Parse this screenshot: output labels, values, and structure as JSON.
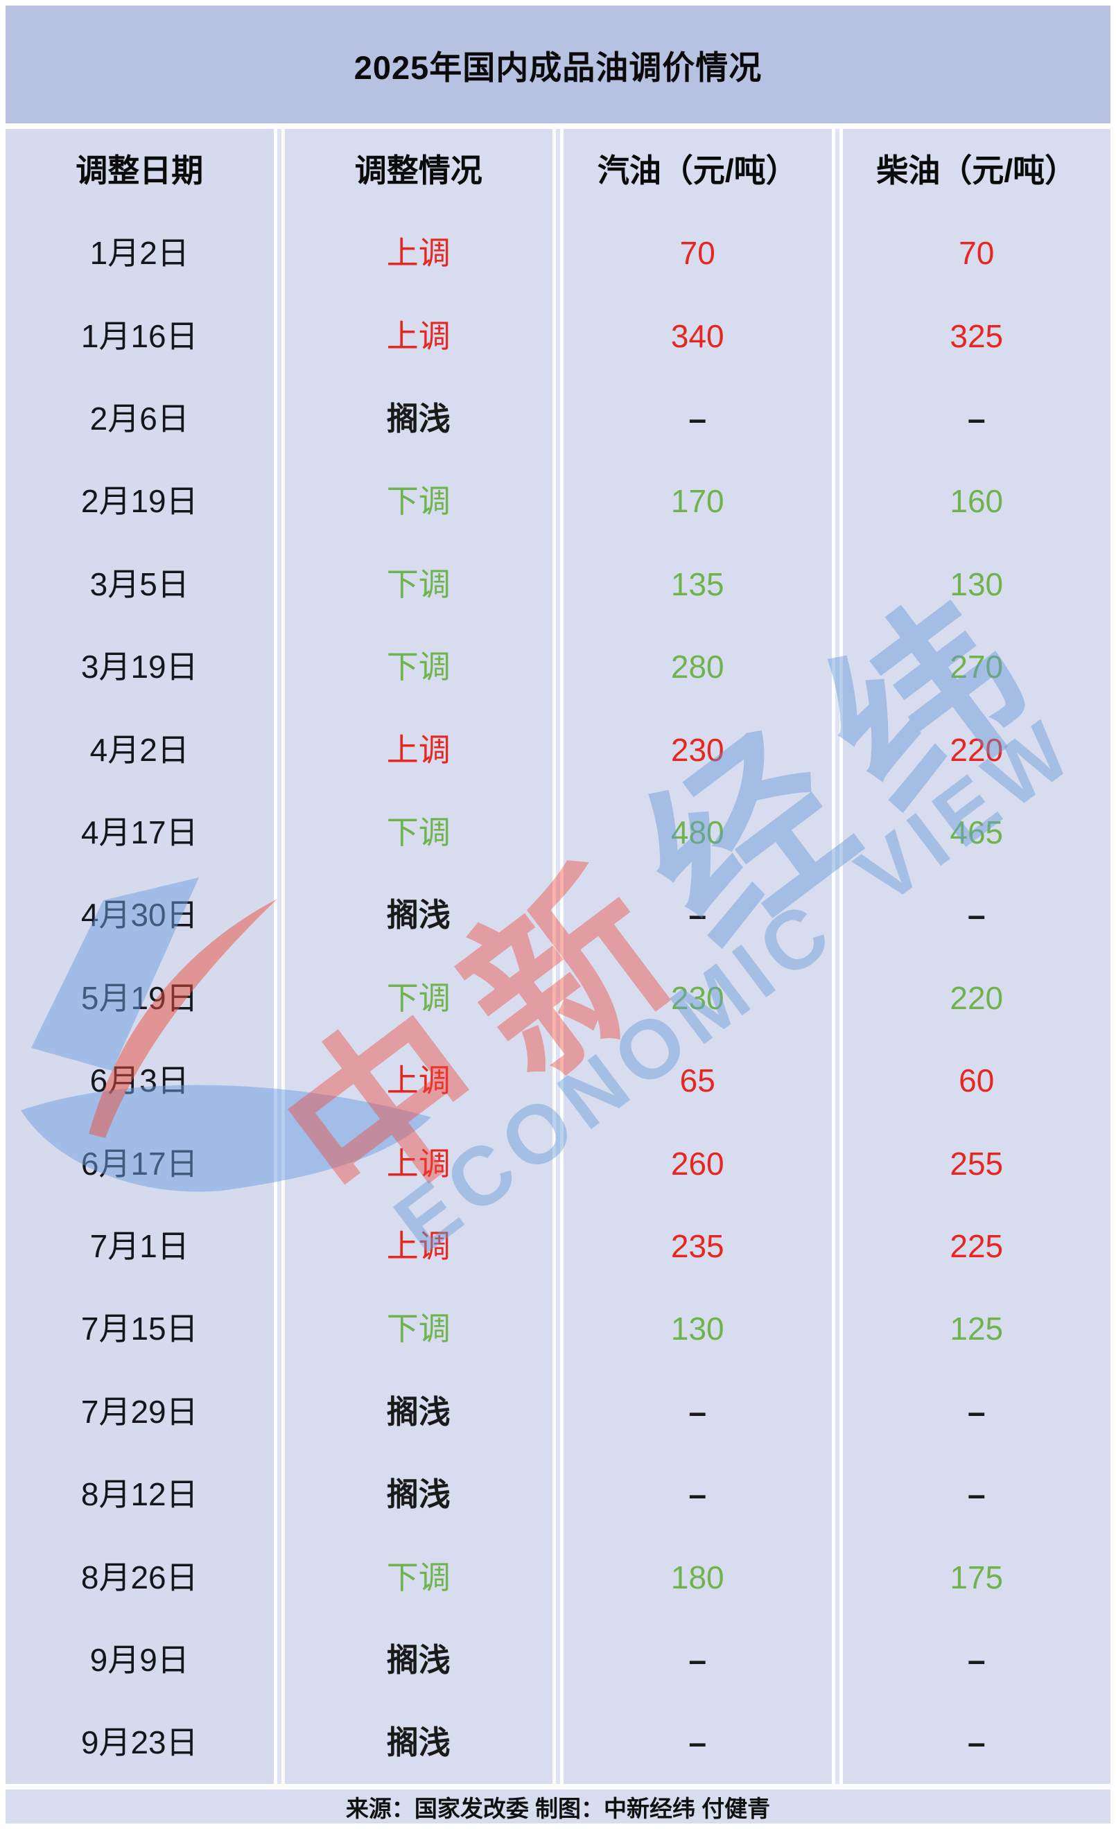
{
  "title": "2025年国内成品油调价情况",
  "table": {
    "columns": [
      "调整日期",
      "调整情况",
      "汽油（元/吨）",
      "柴油（元/吨）"
    ],
    "rows": [
      {
        "date": "1月2日",
        "status": "上调",
        "direction": "up",
        "gasoline": "70",
        "diesel": "70"
      },
      {
        "date": "1月16日",
        "status": "上调",
        "direction": "up",
        "gasoline": "340",
        "diesel": "325"
      },
      {
        "date": "2月6日",
        "status": "搁浅",
        "direction": "hold",
        "gasoline": "–",
        "diesel": "–"
      },
      {
        "date": "2月19日",
        "status": "下调",
        "direction": "down",
        "gasoline": "170",
        "diesel": "160"
      },
      {
        "date": "3月5日",
        "status": "下调",
        "direction": "down",
        "gasoline": "135",
        "diesel": "130"
      },
      {
        "date": "3月19日",
        "status": "下调",
        "direction": "down",
        "gasoline": "280",
        "diesel": "270"
      },
      {
        "date": "4月2日",
        "status": "上调",
        "direction": "up",
        "gasoline": "230",
        "diesel": "220"
      },
      {
        "date": "4月17日",
        "status": "下调",
        "direction": "down",
        "gasoline": "480",
        "diesel": "465"
      },
      {
        "date": "4月30日",
        "status": "搁浅",
        "direction": "hold",
        "gasoline": "–",
        "diesel": "–"
      },
      {
        "date": "5月19日",
        "status": "下调",
        "direction": "down",
        "gasoline": "230",
        "diesel": "220"
      },
      {
        "date": "6月3日",
        "status": "上调",
        "direction": "up",
        "gasoline": "65",
        "diesel": "60"
      },
      {
        "date": "6月17日",
        "status": "上调",
        "direction": "up",
        "gasoline": "260",
        "diesel": "255"
      },
      {
        "date": "7月1日",
        "status": "上调",
        "direction": "up",
        "gasoline": "235",
        "diesel": "225"
      },
      {
        "date": "7月15日",
        "status": "下调",
        "direction": "down",
        "gasoline": "130",
        "diesel": "125"
      },
      {
        "date": "7月29日",
        "status": "搁浅",
        "direction": "hold",
        "gasoline": "–",
        "diesel": "–"
      },
      {
        "date": "8月12日",
        "status": "搁浅",
        "direction": "hold",
        "gasoline": "–",
        "diesel": "–"
      },
      {
        "date": "8月26日",
        "status": "下调",
        "direction": "down",
        "gasoline": "180",
        "diesel": "175"
      },
      {
        "date": "9月9日",
        "status": "搁浅",
        "direction": "hold",
        "gasoline": "–",
        "diesel": "–"
      },
      {
        "date": "9月23日",
        "status": "搁浅",
        "direction": "hold",
        "gasoline": "–",
        "diesel": "–"
      }
    ]
  },
  "footer": "来源：国家发改委 制图：中新经纬 付健青",
  "watermark": {
    "cn_red": "中新",
    "cn_blue": "经纬",
    "en": "ECONOMIC VIEW"
  },
  "colors": {
    "up_red": "#e8251f",
    "down_green": "#6fb34c",
    "hold_black": "#1a1a1a",
    "title_bg": "#b7c2e2",
    "cell_bg": "#d7ddef",
    "watermark_red": "rgba(240,70,55,0.42)",
    "watermark_blue": "rgba(100,150,215,0.45)"
  },
  "chart_data": {
    "type": "table",
    "title": "2025年国内成品油调价情况",
    "columns": [
      "调整日期",
      "调整情况",
      "汽油（元/吨）",
      "柴油（元/吨）"
    ],
    "rows": [
      [
        "1月2日",
        "上调",
        70,
        70
      ],
      [
        "1月16日",
        "上调",
        340,
        325
      ],
      [
        "2月6日",
        "搁浅",
        null,
        null
      ],
      [
        "2月19日",
        "下调",
        170,
        160
      ],
      [
        "3月5日",
        "下调",
        135,
        130
      ],
      [
        "3月19日",
        "下调",
        280,
        270
      ],
      [
        "4月2日",
        "上调",
        230,
        220
      ],
      [
        "4月17日",
        "下调",
        480,
        465
      ],
      [
        "4月30日",
        "搁浅",
        null,
        null
      ],
      [
        "5月19日",
        "下调",
        230,
        220
      ],
      [
        "6月3日",
        "上调",
        65,
        60
      ],
      [
        "6月17日",
        "上调",
        260,
        255
      ],
      [
        "7月1日",
        "上调",
        235,
        225
      ],
      [
        "7月15日",
        "下调",
        130,
        125
      ],
      [
        "7月29日",
        "搁浅",
        null,
        null
      ],
      [
        "8月12日",
        "搁浅",
        null,
        null
      ],
      [
        "8月26日",
        "下调",
        180,
        175
      ],
      [
        "9月9日",
        "搁浅",
        null,
        null
      ],
      [
        "9月23日",
        "搁浅",
        null,
        null
      ]
    ],
    "legend": "上调=red, 下调=green, 搁浅=black dash",
    "source_note": "来源：国家发改委 制图：中新经纬 付健青"
  }
}
